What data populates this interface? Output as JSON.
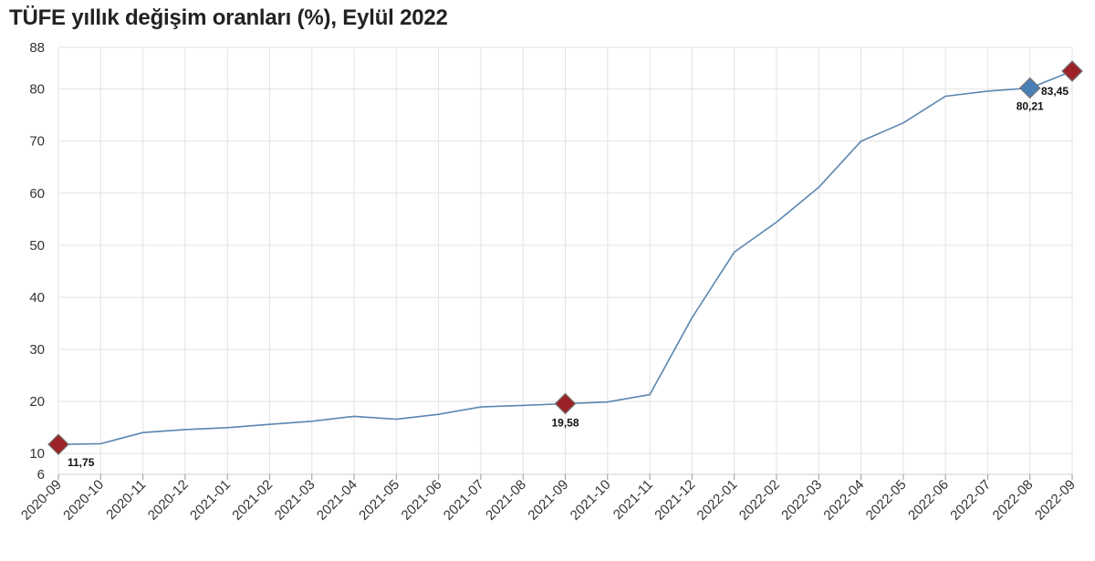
{
  "chart_data": {
    "type": "line",
    "title": "TÜFE yıllık değişim oranları (%), Eylül 2022",
    "xlabel": "",
    "ylabel": "",
    "ylim": [
      6,
      88
    ],
    "yticks": [
      6,
      10,
      20,
      30,
      40,
      50,
      60,
      70,
      80,
      88
    ],
    "grid": true,
    "legend": "none",
    "categories": [
      "2020-09",
      "2020-10",
      "2020-11",
      "2020-12",
      "2021-01",
      "2021-02",
      "2021-03",
      "2021-04",
      "2021-05",
      "2021-06",
      "2021-07",
      "2021-08",
      "2021-09",
      "2021-10",
      "2021-11",
      "2021-12",
      "2022-01",
      "2022-02",
      "2022-03",
      "2022-04",
      "2022-05",
      "2022-06",
      "2022-07",
      "2022-08",
      "2022-09"
    ],
    "series": [
      {
        "values": [
          11.75,
          11.89,
          14.03,
          14.6,
          14.97,
          15.61,
          16.19,
          17.14,
          16.59,
          17.53,
          18.95,
          19.25,
          19.58,
          19.89,
          21.31,
          36.08,
          48.69,
          54.44,
          61.14,
          69.97,
          73.5,
          78.62,
          79.6,
          80.21,
          83.45
        ],
        "color": "#5a86b0"
      }
    ],
    "markers": [
      {
        "category": "2020-09",
        "value": 11.75,
        "label": "11,75",
        "color": "#9b2226"
      },
      {
        "category": "2021-09",
        "value": 19.58,
        "label": "19,58",
        "color": "#9b2226"
      },
      {
        "category": "2022-08",
        "value": 80.21,
        "label": "80,21",
        "color": "#4a7fb5"
      },
      {
        "category": "2022-09",
        "value": 83.45,
        "label": "83,45",
        "color": "#9b2226"
      }
    ]
  }
}
